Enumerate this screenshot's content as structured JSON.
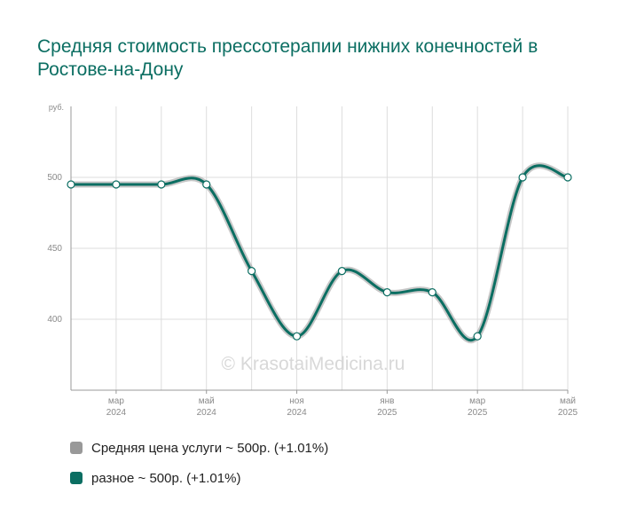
{
  "title": "Средняя стоимость прессотерапии нижних конечностей в Ростове-на-Дону",
  "watermark": "© KrasotaiMedicina.ru",
  "colors": {
    "accent": "#0b6e62",
    "grey_series": "#999999",
    "grid": "#dddddd",
    "axis": "#999999"
  },
  "chart_data": {
    "type": "line",
    "unit_label": "руб.",
    "ylim": [
      350,
      550
    ],
    "yticks": [
      400,
      450,
      500
    ],
    "xlim": [
      0,
      11
    ],
    "x_ticks": [
      {
        "x": 1,
        "month": "мар",
        "year": "2024"
      },
      {
        "x": 3,
        "month": "май",
        "year": "2024"
      },
      {
        "x": 5,
        "month": "ноя",
        "year": "2024"
      },
      {
        "x": 7,
        "month": "янв",
        "year": "2025"
      },
      {
        "x": 9,
        "month": "мар",
        "year": "2025"
      },
      {
        "x": 11,
        "month": "май",
        "year": "2025"
      }
    ],
    "grid": true,
    "legend_position": "bottom",
    "series": [
      {
        "name": "Средняя цена услуги ~ 500р. (+1.01%)",
        "color": "#999999",
        "values": [
          495,
          495,
          495,
          495,
          434,
          388,
          434,
          419,
          419,
          388,
          500,
          500
        ]
      },
      {
        "name": "разное ~ 500р. (+1.01%)",
        "color": "#0b6e62",
        "values": [
          495,
          495,
          495,
          495,
          434,
          388,
          434,
          419,
          419,
          388,
          500,
          500
        ]
      }
    ]
  }
}
